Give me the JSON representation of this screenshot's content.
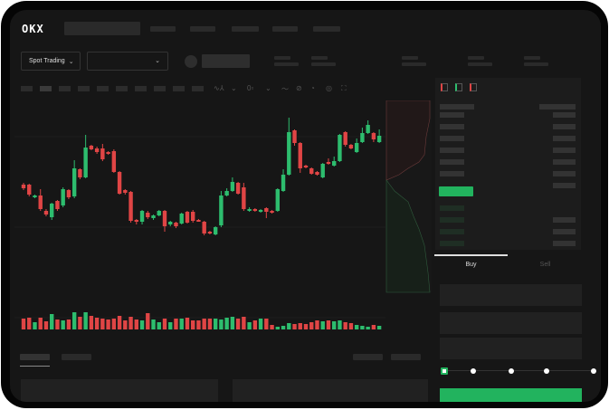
{
  "header": {
    "logo": "OKX"
  },
  "toolbar": {
    "market_type": "Spot Trading",
    "pair_select": ""
  },
  "order_form": {
    "buy_tab": "Buy",
    "sell_tab": "Sell",
    "active_tab": "Buy",
    "leverage_slider_value": 0
  },
  "colors": {
    "up": "#2dbd6e",
    "down": "#e04545",
    "background": "#161616",
    "accent": "#22b35e"
  },
  "chart_data": {
    "type": "candlestick",
    "fields": [
      "open",
      "close",
      "high",
      "low"
    ],
    "candles": [
      [
        77,
        73,
        79,
        71
      ],
      [
        77,
        66,
        78,
        64
      ],
      [
        63,
        65,
        66,
        62
      ],
      [
        65,
        50,
        72,
        48
      ],
      [
        48,
        44,
        50,
        42
      ],
      [
        41,
        56,
        57,
        38
      ],
      [
        59,
        50,
        60,
        48
      ],
      [
        54,
        72,
        74,
        52
      ],
      [
        71,
        63,
        72,
        61
      ],
      [
        64,
        95,
        104,
        62
      ],
      [
        94,
        85,
        95,
        83
      ],
      [
        85,
        118,
        132,
        84
      ],
      [
        120,
        116,
        121,
        115
      ],
      [
        117,
        113,
        119,
        111
      ],
      [
        117,
        105,
        122,
        103
      ],
      [
        113,
        111,
        114,
        110
      ],
      [
        114,
        91,
        116,
        90
      ],
      [
        91,
        67,
        92,
        66
      ],
      [
        71,
        68,
        72,
        66
      ],
      [
        69,
        37,
        70,
        35
      ],
      [
        38,
        36,
        39,
        33
      ],
      [
        36,
        48,
        49,
        33
      ],
      [
        46,
        41,
        48,
        39
      ],
      [
        40,
        43,
        44,
        38
      ],
      [
        43,
        48,
        49,
        42
      ],
      [
        48,
        31,
        49,
        25
      ],
      [
        33,
        36,
        37,
        31
      ],
      [
        35,
        31,
        36,
        29
      ],
      [
        34,
        45,
        46,
        33
      ],
      [
        47,
        35,
        48,
        34
      ],
      [
        47,
        37,
        49,
        35
      ],
      [
        38,
        37,
        39,
        36
      ],
      [
        36,
        23,
        37,
        21
      ],
      [
        25,
        23,
        26,
        22
      ],
      [
        22,
        30,
        31,
        21
      ],
      [
        32,
        65,
        70,
        30
      ],
      [
        65,
        70,
        73,
        64
      ],
      [
        70,
        80,
        85,
        69
      ],
      [
        79,
        67,
        80,
        66
      ],
      [
        74,
        50,
        79,
        48
      ],
      [
        48,
        50,
        52,
        47
      ],
      [
        50,
        48,
        51,
        47
      ],
      [
        47,
        49,
        50,
        46
      ],
      [
        51,
        47,
        52,
        40
      ],
      [
        48,
        46,
        49,
        45
      ],
      [
        48,
        72,
        73,
        47
      ],
      [
        70,
        88,
        94,
        69
      ],
      [
        88,
        135,
        151,
        87
      ],
      [
        137,
        123,
        138,
        120
      ],
      [
        123,
        95,
        124,
        90
      ],
      [
        98,
        96,
        99,
        95
      ],
      [
        95,
        89,
        96,
        88
      ],
      [
        91,
        88,
        92,
        87
      ],
      [
        85,
        100,
        101,
        84
      ],
      [
        102,
        100,
        106,
        99
      ],
      [
        98,
        103,
        108,
        97
      ],
      [
        103,
        132,
        133,
        102
      ],
      [
        135,
        121,
        136,
        119
      ],
      [
        121,
        117,
        122,
        116
      ],
      [
        113,
        123,
        128,
        112
      ],
      [
        124,
        134,
        140,
        123
      ],
      [
        134,
        143,
        148,
        133
      ],
      [
        134,
        127,
        135,
        124
      ],
      [
        124,
        131,
        138,
        123
      ]
    ],
    "volumes": [
      12,
      13,
      8,
      13,
      9,
      17,
      11,
      10,
      11,
      19,
      14,
      19,
      15,
      13,
      12,
      11,
      12,
      15,
      10,
      14,
      11,
      10,
      18,
      11,
      8,
      12,
      8,
      12,
      12,
      13,
      10,
      10,
      12,
      12,
      12,
      11,
      13,
      14,
      12,
      14,
      8,
      10,
      12,
      12,
      5,
      3,
      4,
      7,
      6,
      7,
      6,
      8,
      10,
      9,
      10,
      9,
      10,
      8,
      7,
      5,
      4,
      3,
      5,
      4
    ]
  }
}
